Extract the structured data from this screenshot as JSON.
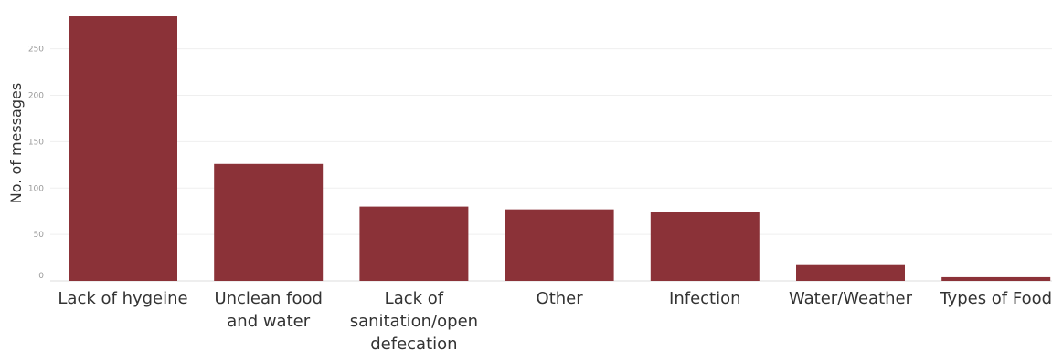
{
  "colors": {
    "bar": "#8b3238"
  },
  "chart_data": {
    "type": "bar",
    "categories": [
      "Lack of hygeine",
      "Unclean food and water",
      "Lack of sanitation/open defecation",
      "Other",
      "Infection",
      "Water/Weather",
      "Types of Food"
    ],
    "category_lines": [
      [
        "Lack of hygeine"
      ],
      [
        "Unclean food",
        "and water"
      ],
      [
        "Lack of",
        "sanitation/open",
        "defecation"
      ],
      [
        "Other"
      ],
      [
        "Infection"
      ],
      [
        "Water/Weather"
      ],
      [
        "Types of Food"
      ]
    ],
    "values": [
      285,
      126,
      80,
      77,
      74,
      17,
      4
    ],
    "title": "",
    "xlabel": "",
    "ylabel": "No. of messages",
    "ylim": [
      0,
      290
    ],
    "yticks": [
      0,
      50,
      100,
      150,
      200,
      250
    ],
    "grid": true
  }
}
